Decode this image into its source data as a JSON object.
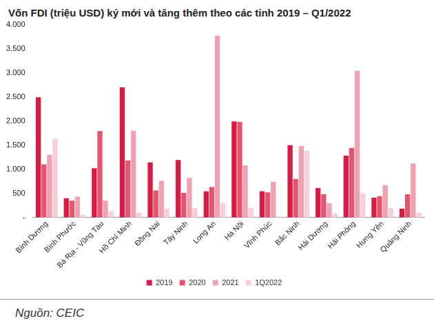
{
  "chart_data": {
    "type": "bar",
    "title": "Vốn FDI (triệu USD) ký mới và tăng thêm theo các tỉnh 2019 – Q1/2022",
    "source": "Nguồn: CEIC",
    "categories": [
      "Bình Dương",
      "Bình Phước",
      "Bà Rịa - Vũng Tàu",
      "Hồ Chí Minh",
      "Đồng Nai",
      "Tây Ninh",
      "Long An",
      "Hà Nội",
      "Vĩnh Phúc",
      "Bắc Ninh",
      "Hải Dương",
      "Hải Phòng",
      "Hưng Yên",
      "Quảng Ninh"
    ],
    "series": [
      {
        "name": "2019",
        "color": "#d81b45",
        "values": [
          2490,
          400,
          1020,
          2700,
          1140,
          1190,
          540,
          1990,
          540,
          1500,
          610,
          1280,
          410,
          180
        ]
      },
      {
        "name": "2020",
        "color": "#e8536e",
        "values": [
          1100,
          350,
          1790,
          1180,
          560,
          510,
          630,
          1980,
          520,
          800,
          480,
          1440,
          440,
          480
        ]
      },
      {
        "name": "2021",
        "color": "#f2a1b1",
        "values": [
          1300,
          430,
          350,
          1800,
          760,
          820,
          3770,
          1080,
          740,
          1480,
          290,
          3040,
          670,
          1120
        ]
      },
      {
        "name": "1Q2022",
        "color": "#f8cfd8",
        "values": [
          1630,
          50,
          130,
          100,
          180,
          190,
          300,
          200,
          20,
          1380,
          80,
          500,
          190,
          100
        ]
      }
    ],
    "ylim": [
      0,
      4000
    ],
    "yticks": [
      {
        "value": 0,
        "label": "-"
      },
      500,
      {
        "value": 1000,
        "label": "1.000"
      },
      {
        "value": 1500,
        "label": "1.500"
      },
      {
        "value": 2000,
        "label": "2.000"
      },
      {
        "value": 2500,
        "label": "2.500"
      },
      {
        "value": 3000,
        "label": "3.000"
      },
      {
        "value": 3500,
        "label": "3.500"
      },
      {
        "value": 4000,
        "label": "4.000"
      }
    ],
    "grid": false,
    "legend": "bottom"
  }
}
